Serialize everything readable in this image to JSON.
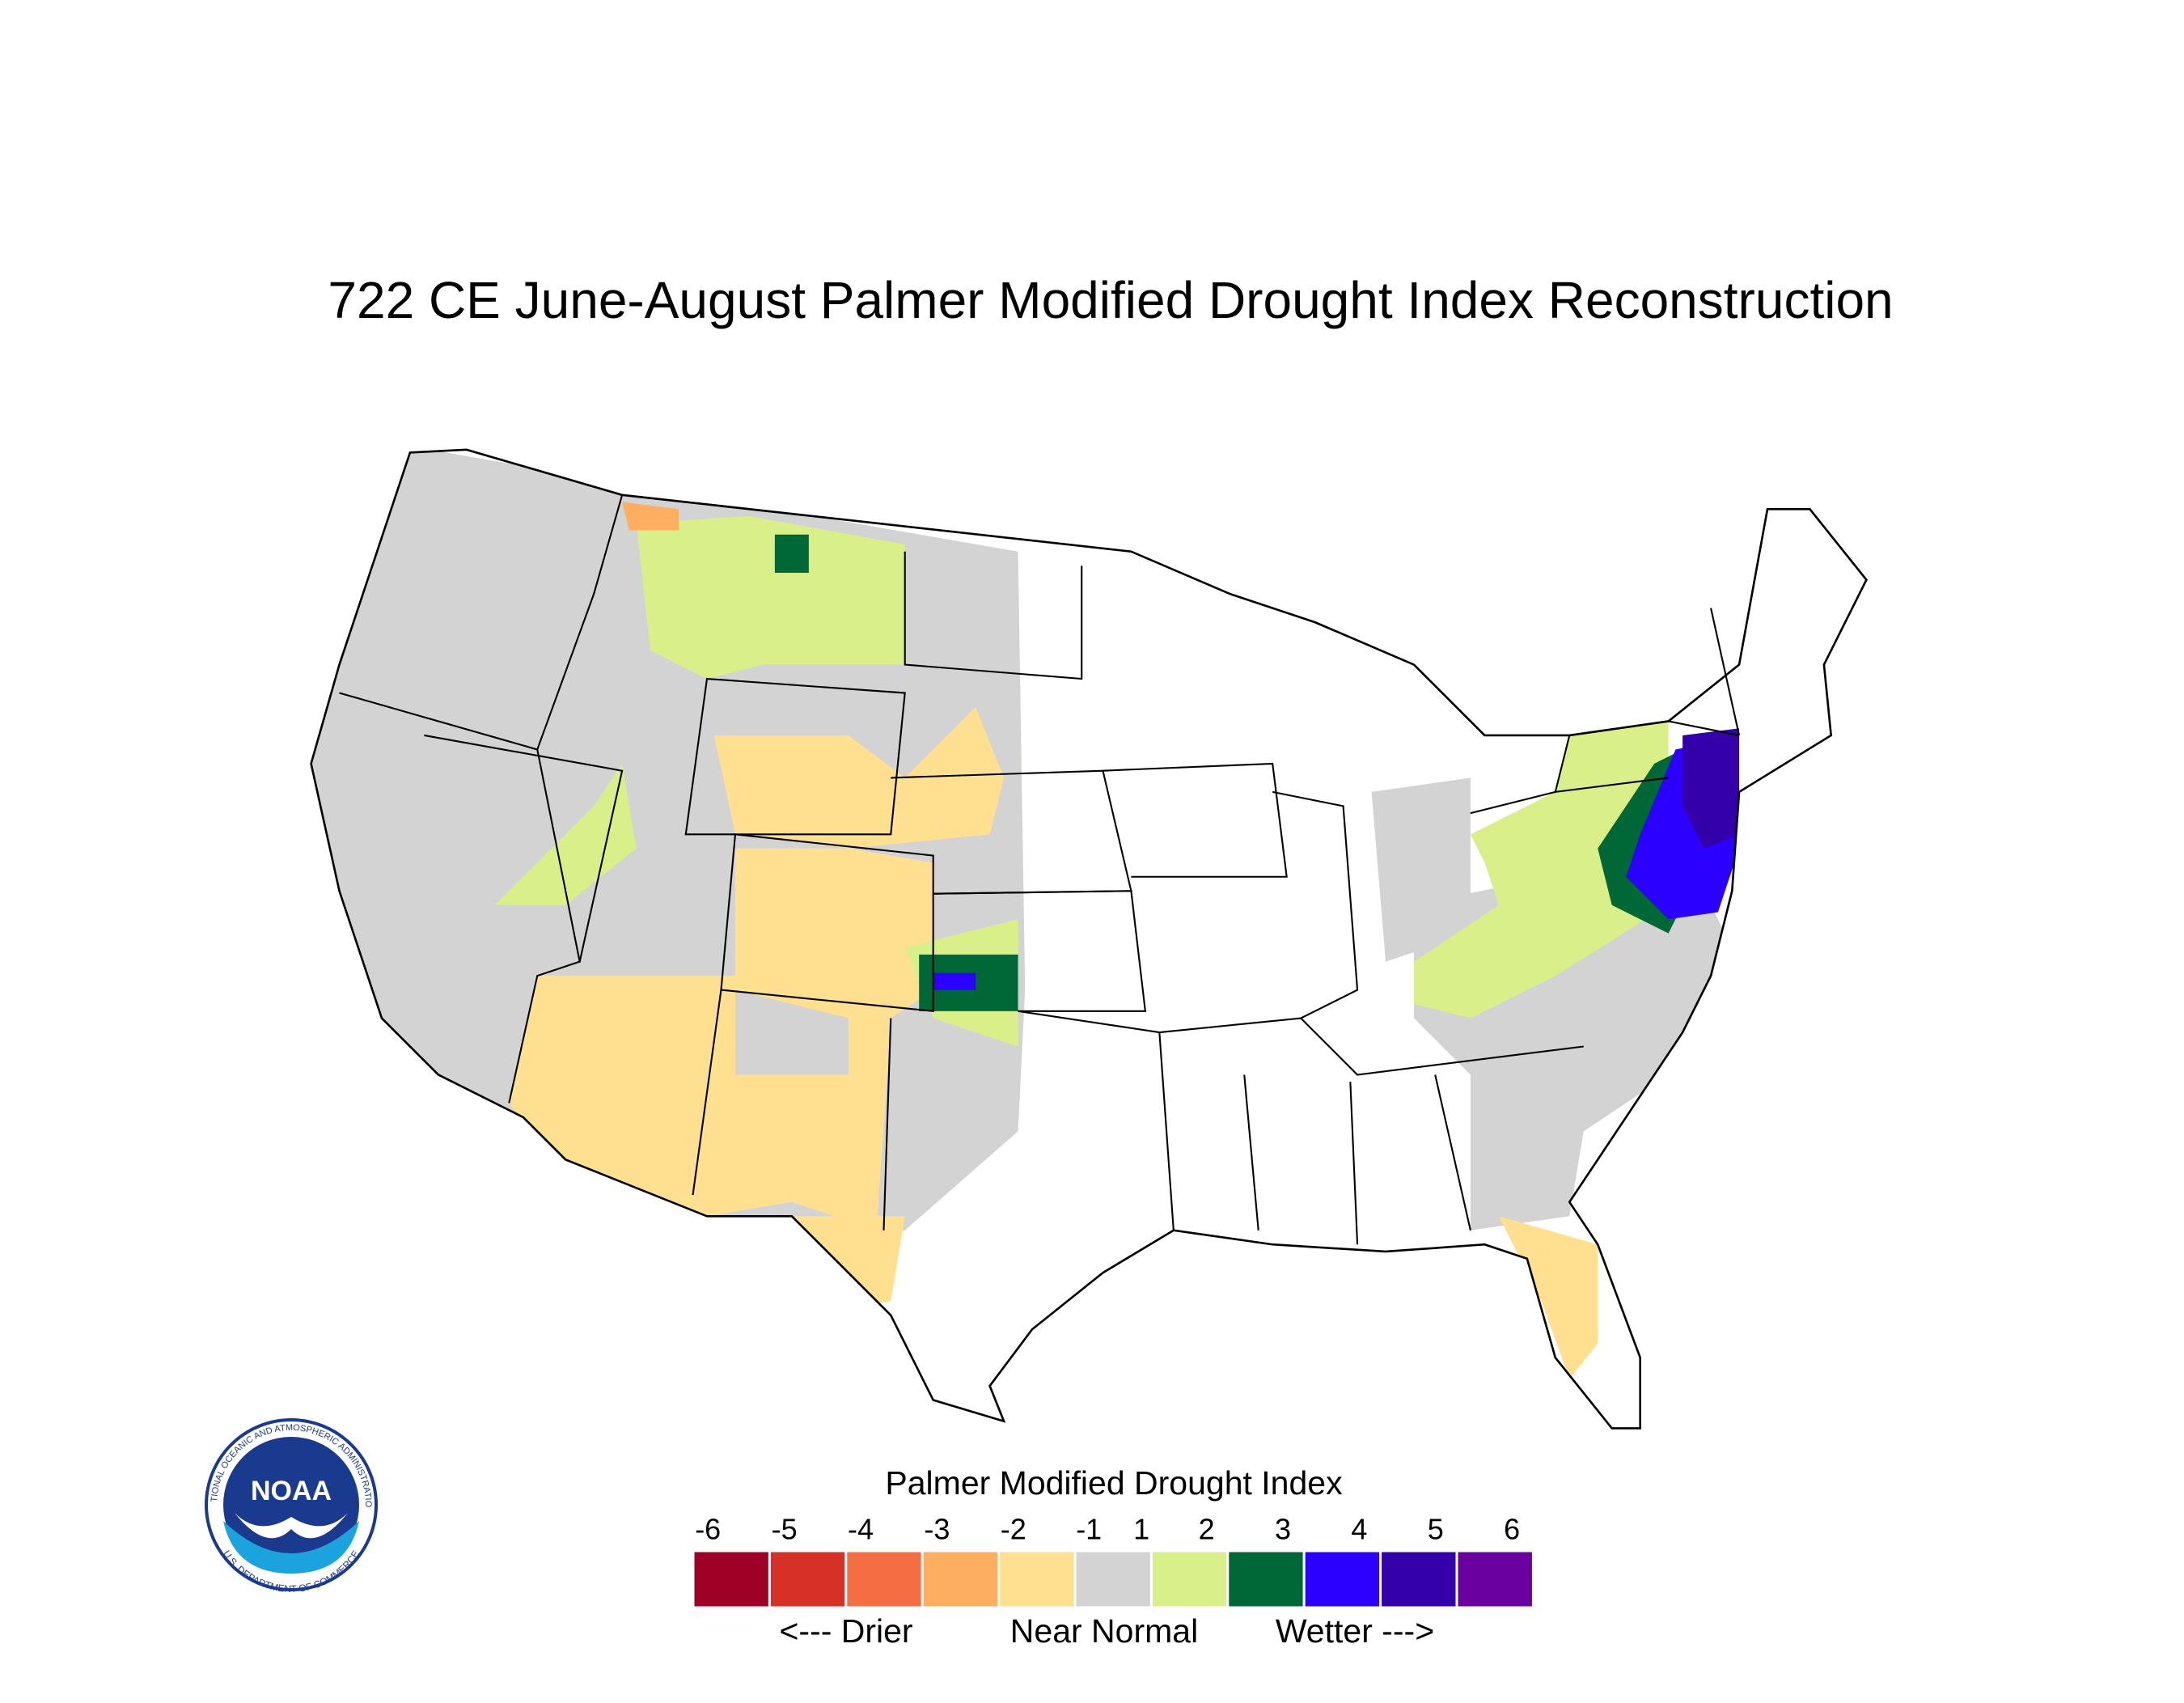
{
  "title": "722 CE  June-August  Palmer Modified Drought Index Reconstruction",
  "legend": {
    "title": "Palmer Modified Drought Index",
    "ticks": [
      -6,
      -5,
      -4,
      -3,
      -2,
      -1,
      1,
      2,
      3,
      4,
      5,
      6
    ],
    "colors": [
      "#9e0026",
      "#d73027",
      "#f46d43",
      "#fdae61",
      "#fee090",
      "#d3d3d3",
      "#d9f08a",
      "#006837",
      "#2b00ff",
      "#3300aa",
      "#6a00a0"
    ],
    "labels": [
      "<--- Drier",
      "Near Normal",
      "Wetter --->"
    ]
  },
  "logo": {
    "name": "NOAA",
    "agency": "NATIONAL OCEANIC AND ATMOSPHERIC ADMINISTRATION",
    "department": "U.S. DEPARTMENT OF COMMERCE"
  }
}
